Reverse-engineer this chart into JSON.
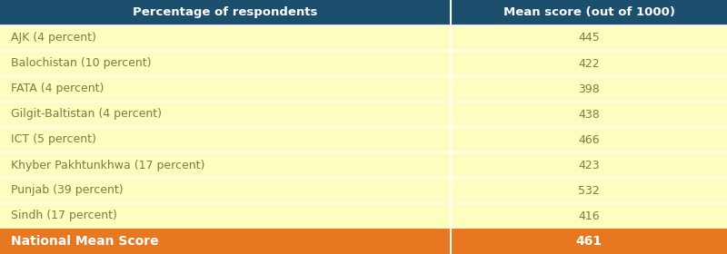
{
  "col1_header": "Percentage of respondents",
  "col2_header": "Mean score (out of 1000)",
  "rows": [
    {
      "label": "AJK (4 percent)",
      "value": "445"
    },
    {
      "label": "Balochistan (10 percent)",
      "value": "422"
    },
    {
      "label": "FATA (4 percent)",
      "value": "398"
    },
    {
      "label": "Gilgit-Baltistan (4 percent)",
      "value": "438"
    },
    {
      "label": "ICT (5 percent)",
      "value": "466"
    },
    {
      "label": "Khyber Pakhtunkhwa (17 percent)",
      "value": "423"
    },
    {
      "label": "Punjab (39 percent)",
      "value": "532"
    },
    {
      "label": "Sindh (17 percent)",
      "value": "416"
    }
  ],
  "footer_label": "National Mean Score",
  "footer_value": "461",
  "header_bg": "#1c4f6e",
  "header_text": "#ffffff",
  "row_bg": "#fdfdc0",
  "row_text": "#7d7d3c",
  "footer_bg": "#e87722",
  "footer_text": "#ffffff",
  "divider_color": "#ffffff",
  "col_split": 0.62
}
